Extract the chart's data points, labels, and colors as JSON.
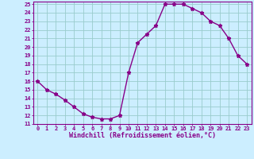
{
  "x": [
    0,
    1,
    2,
    3,
    4,
    5,
    6,
    7,
    8,
    9,
    10,
    11,
    12,
    13,
    14,
    15,
    16,
    17,
    18,
    19,
    20,
    21,
    22,
    23
  ],
  "y": [
    16,
    15,
    14.5,
    13.8,
    13,
    12.2,
    11.8,
    11.6,
    11.6,
    12,
    17,
    20.5,
    21.5,
    22.5,
    25,
    25,
    25,
    24.5,
    24,
    23,
    22.5,
    21,
    19,
    18
  ],
  "xlabel": "Windchill (Refroidissement éolien,°C)",
  "ylim": [
    11,
    25
  ],
  "xlim": [
    -0.5,
    23.5
  ],
  "yticks": [
    11,
    12,
    13,
    14,
    15,
    16,
    17,
    18,
    19,
    20,
    21,
    22,
    23,
    24,
    25
  ],
  "xticks": [
    0,
    1,
    2,
    3,
    4,
    5,
    6,
    7,
    8,
    9,
    10,
    11,
    12,
    13,
    14,
    15,
    16,
    17,
    18,
    19,
    20,
    21,
    22,
    23
  ],
  "line_color": "#880088",
  "marker": "*",
  "markersize": 3.5,
  "bg_color": "#cceeff",
  "grid_color": "#99cccc",
  "tick_label_color": "#880088",
  "xlabel_color": "#880088",
  "font_family": "monospace",
  "tick_fontsize": 5.0,
  "xlabel_fontsize": 6.0,
  "linewidth": 1.0
}
